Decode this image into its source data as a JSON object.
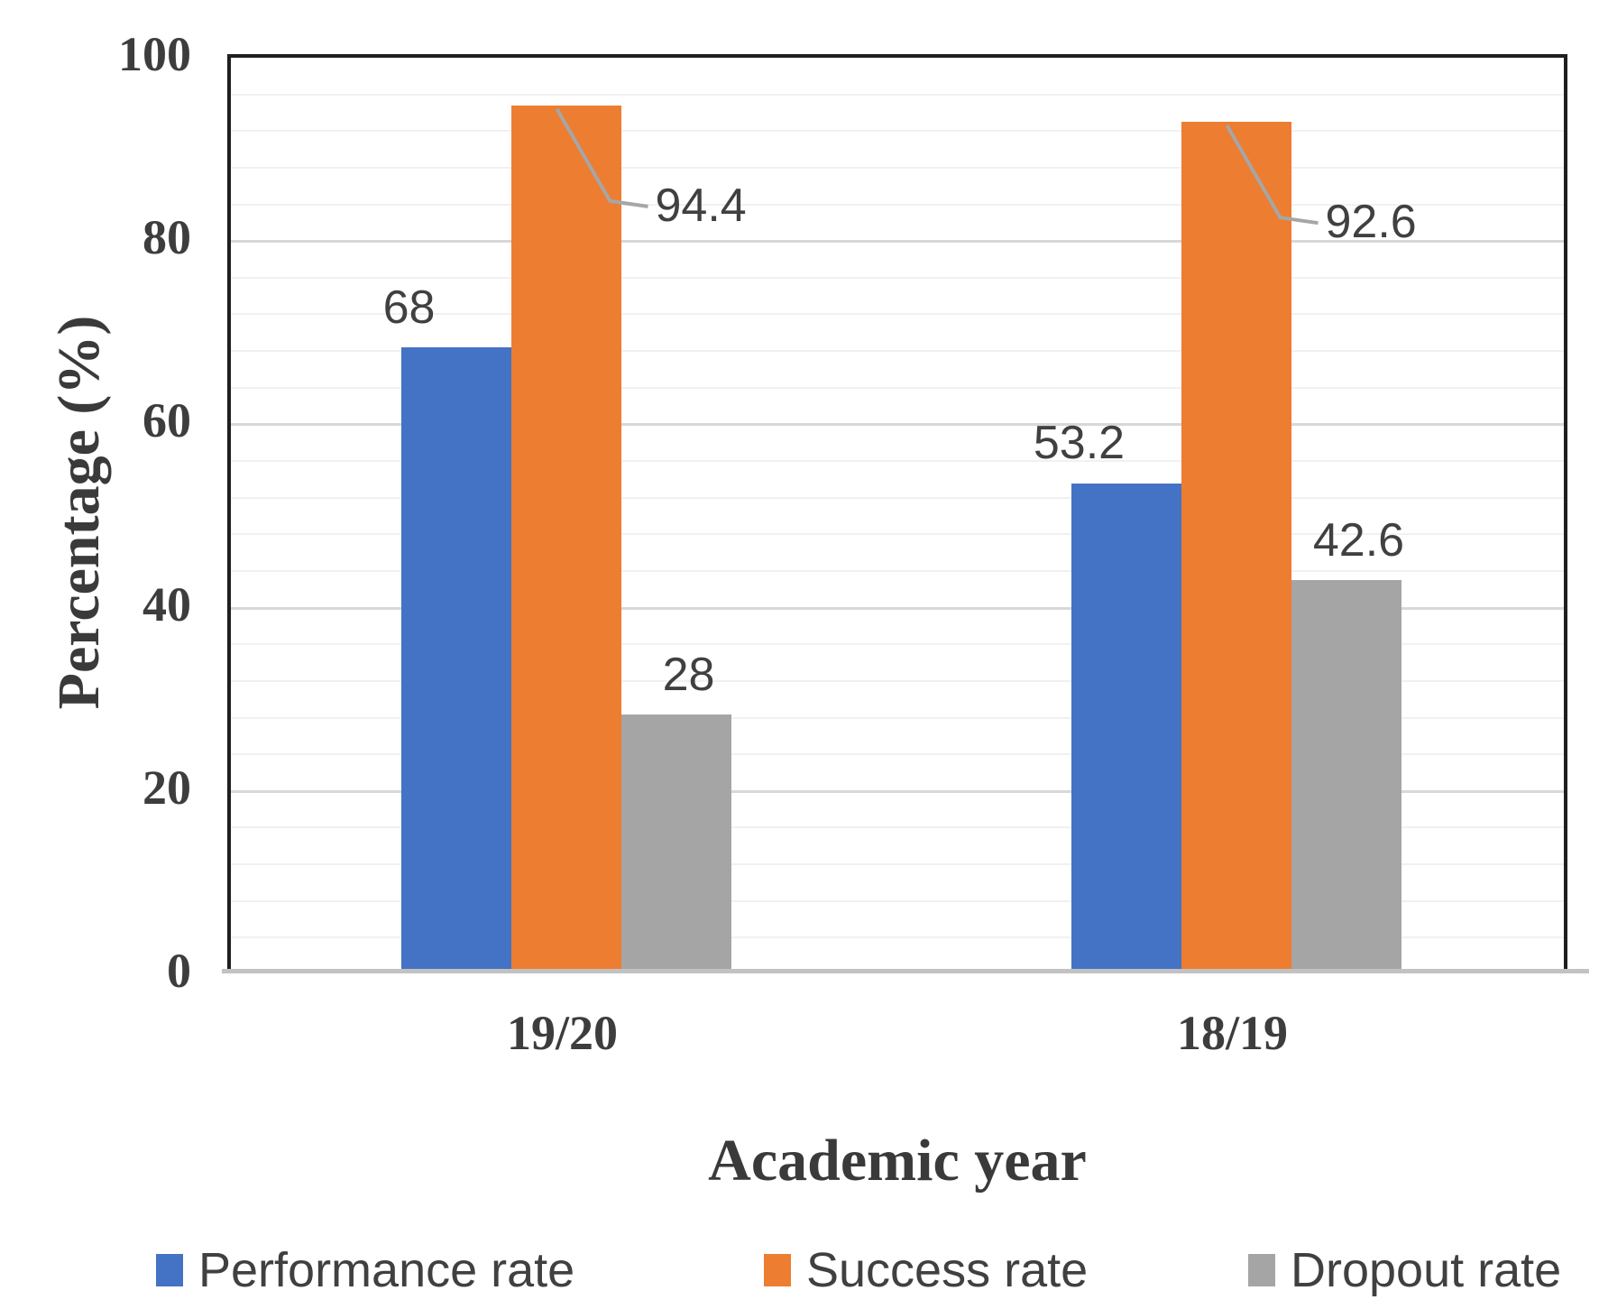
{
  "chart_data": {
    "type": "bar",
    "title": "",
    "categories": [
      "19/20",
      "18/19"
    ],
    "series": [
      {
        "name": "Performance rate",
        "color": "#4472C4",
        "values": [
          68,
          53.2
        ],
        "label_placement": "above"
      },
      {
        "name": "Success rate",
        "color": "#ED7D31",
        "values": [
          94.4,
          92.6
        ],
        "label_placement": "callout-right"
      },
      {
        "name": "Dropout rate",
        "color": "#A5A5A5",
        "values": [
          28,
          42.6
        ],
        "label_placement": "above"
      }
    ],
    "xlabel": "Academic year",
    "ylabel": "Percentage (%)",
    "ylim": [
      0,
      100
    ],
    "y_major_unit": 20,
    "y_minor_unit": 4,
    "y_tick_labels": [
      "0",
      "20",
      "40",
      "60",
      "80",
      "100"
    ],
    "grid": "horizontal major+minor",
    "legend_position": "bottom",
    "legend_entries": [
      "Performance rate",
      "Success rate",
      "Dropout rate"
    ],
    "data_labels": [
      "68",
      "94.4",
      "28",
      "53.2",
      "92.6",
      "42.6"
    ]
  },
  "colors": {
    "plot_border": "#1f1f1f",
    "axis_line": "#c2c2c2",
    "major_gridline": "#d8d8d8",
    "minor_gridline": "#f1f1f1",
    "leader_line": "#a6a6a6",
    "text": "#3d3d3d",
    "background": "#ffffff"
  }
}
